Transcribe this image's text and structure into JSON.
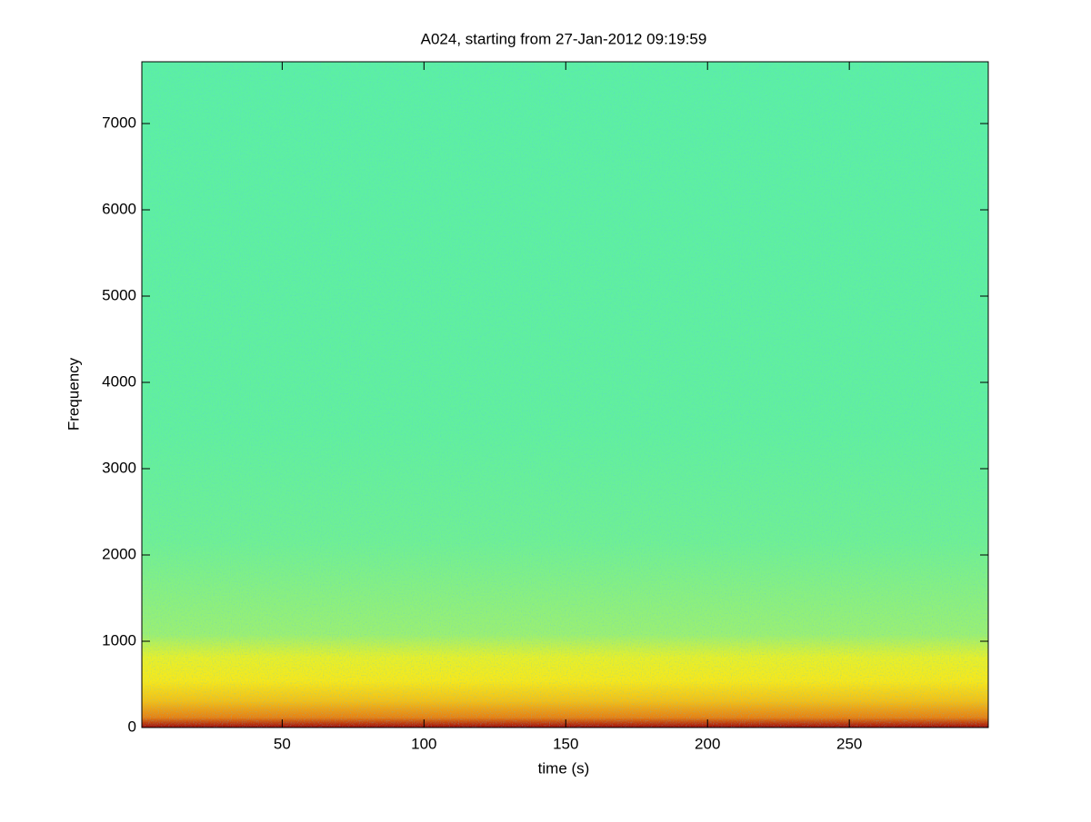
{
  "chart_data": {
    "type": "spectrogram",
    "title": "A024, starting from 27-Jan-2012 09:19:59",
    "xlabel": "time (s)",
    "ylabel": "Frequency",
    "xlim": [
      0.5,
      299
    ],
    "ylim": [
      0,
      7716
    ],
    "xticks": [
      50,
      100,
      150,
      200,
      250
    ],
    "yticks": [
      0,
      1000,
      2000,
      3000,
      4000,
      5000,
      6000,
      7000
    ],
    "colormap": "jet"
  }
}
